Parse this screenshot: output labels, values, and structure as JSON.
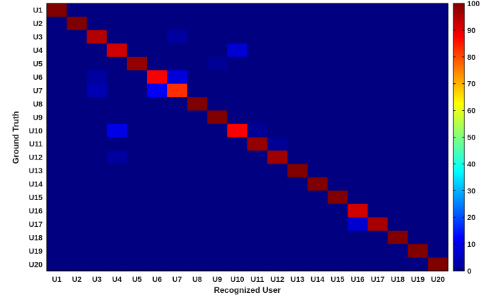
{
  "chart_data": {
    "type": "heatmap",
    "xlabel": "Recognized User",
    "ylabel": "Ground Truth",
    "x_categories": [
      "U1",
      "U2",
      "U3",
      "U4",
      "U5",
      "U6",
      "U7",
      "U8",
      "U9",
      "U10",
      "U11",
      "U12",
      "U13",
      "U14",
      "U15",
      "U16",
      "U17",
      "U18",
      "U19",
      "U20"
    ],
    "y_categories": [
      "U1",
      "U2",
      "U3",
      "U4",
      "U5",
      "U6",
      "U7",
      "U8",
      "U9",
      "U10",
      "U11",
      "U12",
      "U13",
      "U14",
      "U15",
      "U16",
      "U17",
      "U18",
      "U19",
      "U20"
    ],
    "values": [
      [
        100,
        0,
        0,
        0,
        0,
        0,
        0,
        0,
        0,
        0,
        0,
        0,
        0,
        0,
        0,
        0,
        0,
        0,
        0,
        0
      ],
      [
        0,
        100,
        0,
        0,
        0,
        0,
        0,
        0,
        0,
        0,
        0,
        0,
        0,
        0,
        0,
        0,
        0,
        0,
        0,
        0
      ],
      [
        0,
        0,
        95,
        0,
        0,
        0,
        3,
        0,
        0,
        0,
        0,
        0,
        0,
        0,
        0,
        0,
        0,
        0,
        0,
        0
      ],
      [
        0,
        0,
        0,
        92,
        0,
        0,
        0,
        0,
        0,
        8,
        0,
        0,
        0,
        0,
        0,
        0,
        0,
        0,
        0,
        0
      ],
      [
        0,
        0,
        0,
        0,
        98,
        0,
        0,
        0,
        2,
        0,
        0,
        0,
        0,
        0,
        0,
        0,
        0,
        0,
        0,
        0
      ],
      [
        0,
        0,
        3,
        0,
        0,
        88,
        9,
        0,
        0,
        0,
        0,
        0,
        0,
        0,
        0,
        0,
        0,
        0,
        0,
        0
      ],
      [
        0,
        0,
        5,
        0,
        0,
        12,
        83,
        0,
        0,
        0,
        0,
        0,
        0,
        0,
        0,
        0,
        0,
        0,
        0,
        0
      ],
      [
        0,
        0,
        0,
        0,
        0,
        0,
        0,
        100,
        0,
        0,
        0,
        0,
        0,
        0,
        0,
        0,
        0,
        0,
        0,
        0
      ],
      [
        0,
        0,
        0,
        0,
        0,
        0,
        0,
        0,
        100,
        0,
        0,
        0,
        0,
        0,
        0,
        0,
        0,
        0,
        0,
        0
      ],
      [
        0,
        0,
        0,
        10,
        0,
        0,
        0,
        0,
        0,
        88,
        2,
        0,
        0,
        0,
        0,
        0,
        0,
        0,
        0,
        0
      ],
      [
        0,
        0,
        0,
        0,
        0,
        0,
        0,
        0,
        0,
        0,
        98,
        2,
        0,
        0,
        0,
        0,
        0,
        0,
        0,
        0
      ],
      [
        0,
        0,
        0,
        3,
        0,
        0,
        0,
        0,
        0,
        0,
        0,
        97,
        0,
        0,
        0,
        0,
        0,
        0,
        0,
        0
      ],
      [
        0,
        0,
        0,
        0,
        0,
        0,
        0,
        0,
        0,
        0,
        0,
        0,
        100,
        0,
        0,
        0,
        0,
        0,
        0,
        0
      ],
      [
        0,
        0,
        0,
        0,
        0,
        0,
        0,
        0,
        0,
        0,
        0,
        0,
        0,
        100,
        0,
        0,
        0,
        0,
        0,
        0
      ],
      [
        0,
        0,
        0,
        0,
        0,
        0,
        0,
        0,
        0,
        0,
        0,
        0,
        0,
        0,
        100,
        0,
        0,
        0,
        0,
        0
      ],
      [
        0,
        0,
        0,
        0,
        0,
        0,
        0,
        0,
        0,
        0,
        0,
        0,
        0,
        0,
        0,
        92,
        0,
        0,
        0,
        0
      ],
      [
        0,
        0,
        0,
        0,
        0,
        0,
        0,
        0,
        0,
        0,
        0,
        0,
        0,
        0,
        0,
        8,
        96,
        0,
        0,
        0
      ],
      [
        0,
        0,
        0,
        0,
        0,
        0,
        0,
        0,
        0,
        0,
        0,
        0,
        0,
        0,
        0,
        0,
        0,
        100,
        0,
        0
      ],
      [
        0,
        0,
        0,
        0,
        0,
        0,
        0,
        0,
        0,
        0,
        0,
        0,
        0,
        0,
        0,
        0,
        0,
        0,
        100,
        0
      ],
      [
        0,
        0,
        0,
        0,
        0,
        0,
        0,
        0,
        0,
        0,
        0,
        0,
        0,
        0,
        0,
        0,
        0,
        0,
        0,
        100
      ]
    ],
    "colorbar": {
      "range": [
        0,
        100
      ],
      "ticks": [
        "0",
        "10",
        "20",
        "30",
        "40",
        "50",
        "60",
        "70",
        "80",
        "90",
        "100"
      ],
      "colormap": "jet"
    }
  }
}
